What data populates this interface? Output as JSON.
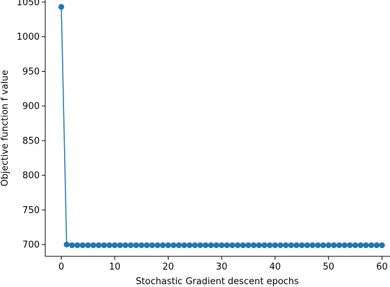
{
  "chart_data": {
    "type": "line",
    "title": "",
    "xlabel": "Stochastic Gradient descent epochs",
    "ylabel": "Objective function f value",
    "xlim": [
      -3,
      61.5
    ],
    "ylim": [
      683,
      1053
    ],
    "xticks": [
      0,
      10,
      20,
      30,
      40,
      50,
      60
    ],
    "yticks": [
      700,
      750,
      800,
      850,
      900,
      950,
      1000,
      1050
    ],
    "marker": "circle",
    "grid": false,
    "legend": "none",
    "color": "#1f77b4",
    "series": [
      {
        "x": [
          0,
          1,
          2,
          3,
          4,
          5,
          6,
          7,
          8,
          9,
          10,
          11,
          12,
          13,
          14,
          15,
          16,
          17,
          18,
          19,
          20,
          21,
          22,
          23,
          24,
          25,
          26,
          27,
          28,
          29,
          30,
          31,
          32,
          33,
          34,
          35,
          36,
          37,
          38,
          39,
          40,
          41,
          42,
          43,
          44,
          45,
          46,
          47,
          48,
          49,
          50,
          51,
          52,
          53,
          54,
          55,
          56,
          57,
          58,
          59,
          60
        ],
        "y": [
          1043,
          700,
          699,
          699,
          699,
          699,
          699,
          699,
          699,
          699,
          699,
          699,
          699,
          699,
          699,
          699,
          699,
          699,
          699,
          699,
          699,
          699,
          699,
          699,
          699,
          699,
          699,
          699,
          699,
          699,
          699,
          699,
          699,
          699,
          699,
          699,
          699,
          699,
          699,
          699,
          699,
          699,
          699,
          699,
          699,
          699,
          699,
          699,
          699,
          699,
          699,
          699,
          699,
          699,
          699,
          699,
          699,
          699,
          699,
          699,
          699
        ]
      }
    ]
  }
}
